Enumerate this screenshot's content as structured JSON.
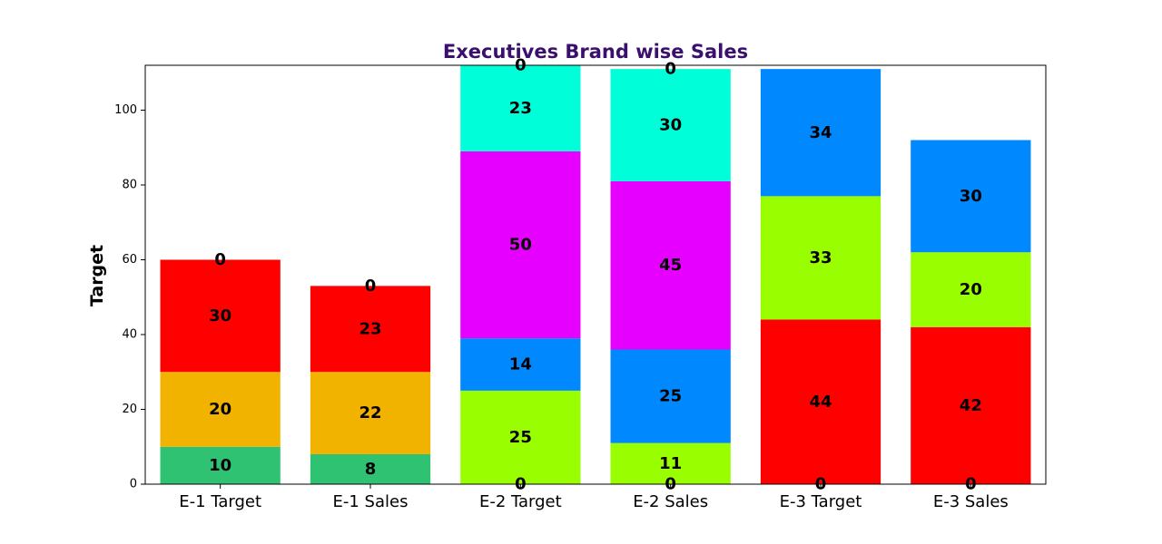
{
  "chart_data": {
    "type": "bar",
    "stacked": true,
    "title": "Executives Brand wise Sales",
    "title_color": "#3b0f6e",
    "xlabel": "",
    "ylabel": "Target",
    "ylim": [
      0,
      112
    ],
    "yticks": [
      0,
      20,
      40,
      60,
      80,
      100
    ],
    "grid": false,
    "legend": "none",
    "categories": [
      "E-1 Target",
      "E-1 Sales",
      "E-2 Target",
      "E-2 Sales",
      "E-3 Target",
      "E-3 Sales"
    ],
    "bars": [
      {
        "category": "E-1 Target",
        "segments": [
          {
            "value": 10,
            "color": "#2fc273"
          },
          {
            "value": 20,
            "color": "#f2b200"
          },
          {
            "value": 30,
            "color": "#ff0000"
          },
          {
            "value": 0,
            "color": "#ff0000"
          }
        ]
      },
      {
        "category": "E-1 Sales",
        "segments": [
          {
            "value": 8,
            "color": "#2fc273"
          },
          {
            "value": 22,
            "color": "#f2b200"
          },
          {
            "value": 23,
            "color": "#ff0000"
          },
          {
            "value": 0,
            "color": "#ff0000"
          }
        ]
      },
      {
        "category": "E-2 Target",
        "segments": [
          {
            "value": 0,
            "color": "#99ff00"
          },
          {
            "value": 25,
            "color": "#99ff00"
          },
          {
            "value": 14,
            "color": "#0088ff"
          },
          {
            "value": 50,
            "color": "#e600ff"
          },
          {
            "value": 23,
            "color": "#00ffd9"
          },
          {
            "value": 0,
            "color": "#00ffd9"
          }
        ]
      },
      {
        "category": "E-2 Sales",
        "segments": [
          {
            "value": 0,
            "color": "#99ff00"
          },
          {
            "value": 11,
            "color": "#99ff00"
          },
          {
            "value": 25,
            "color": "#0088ff"
          },
          {
            "value": 45,
            "color": "#e600ff"
          },
          {
            "value": 30,
            "color": "#00ffd9"
          },
          {
            "value": 0,
            "color": "#00ffd9"
          }
        ]
      },
      {
        "category": "E-3 Target",
        "segments": [
          {
            "value": 0,
            "color": "#ff0000"
          },
          {
            "value": 44,
            "color": "#ff0000"
          },
          {
            "value": 33,
            "color": "#99ff00"
          },
          {
            "value": 34,
            "color": "#0088ff"
          }
        ]
      },
      {
        "category": "E-3 Sales",
        "segments": [
          {
            "value": 0,
            "color": "#ff0000"
          },
          {
            "value": 42,
            "color": "#ff0000"
          },
          {
            "value": 20,
            "color": "#99ff00"
          },
          {
            "value": 30,
            "color": "#0088ff"
          }
        ]
      }
    ]
  }
}
